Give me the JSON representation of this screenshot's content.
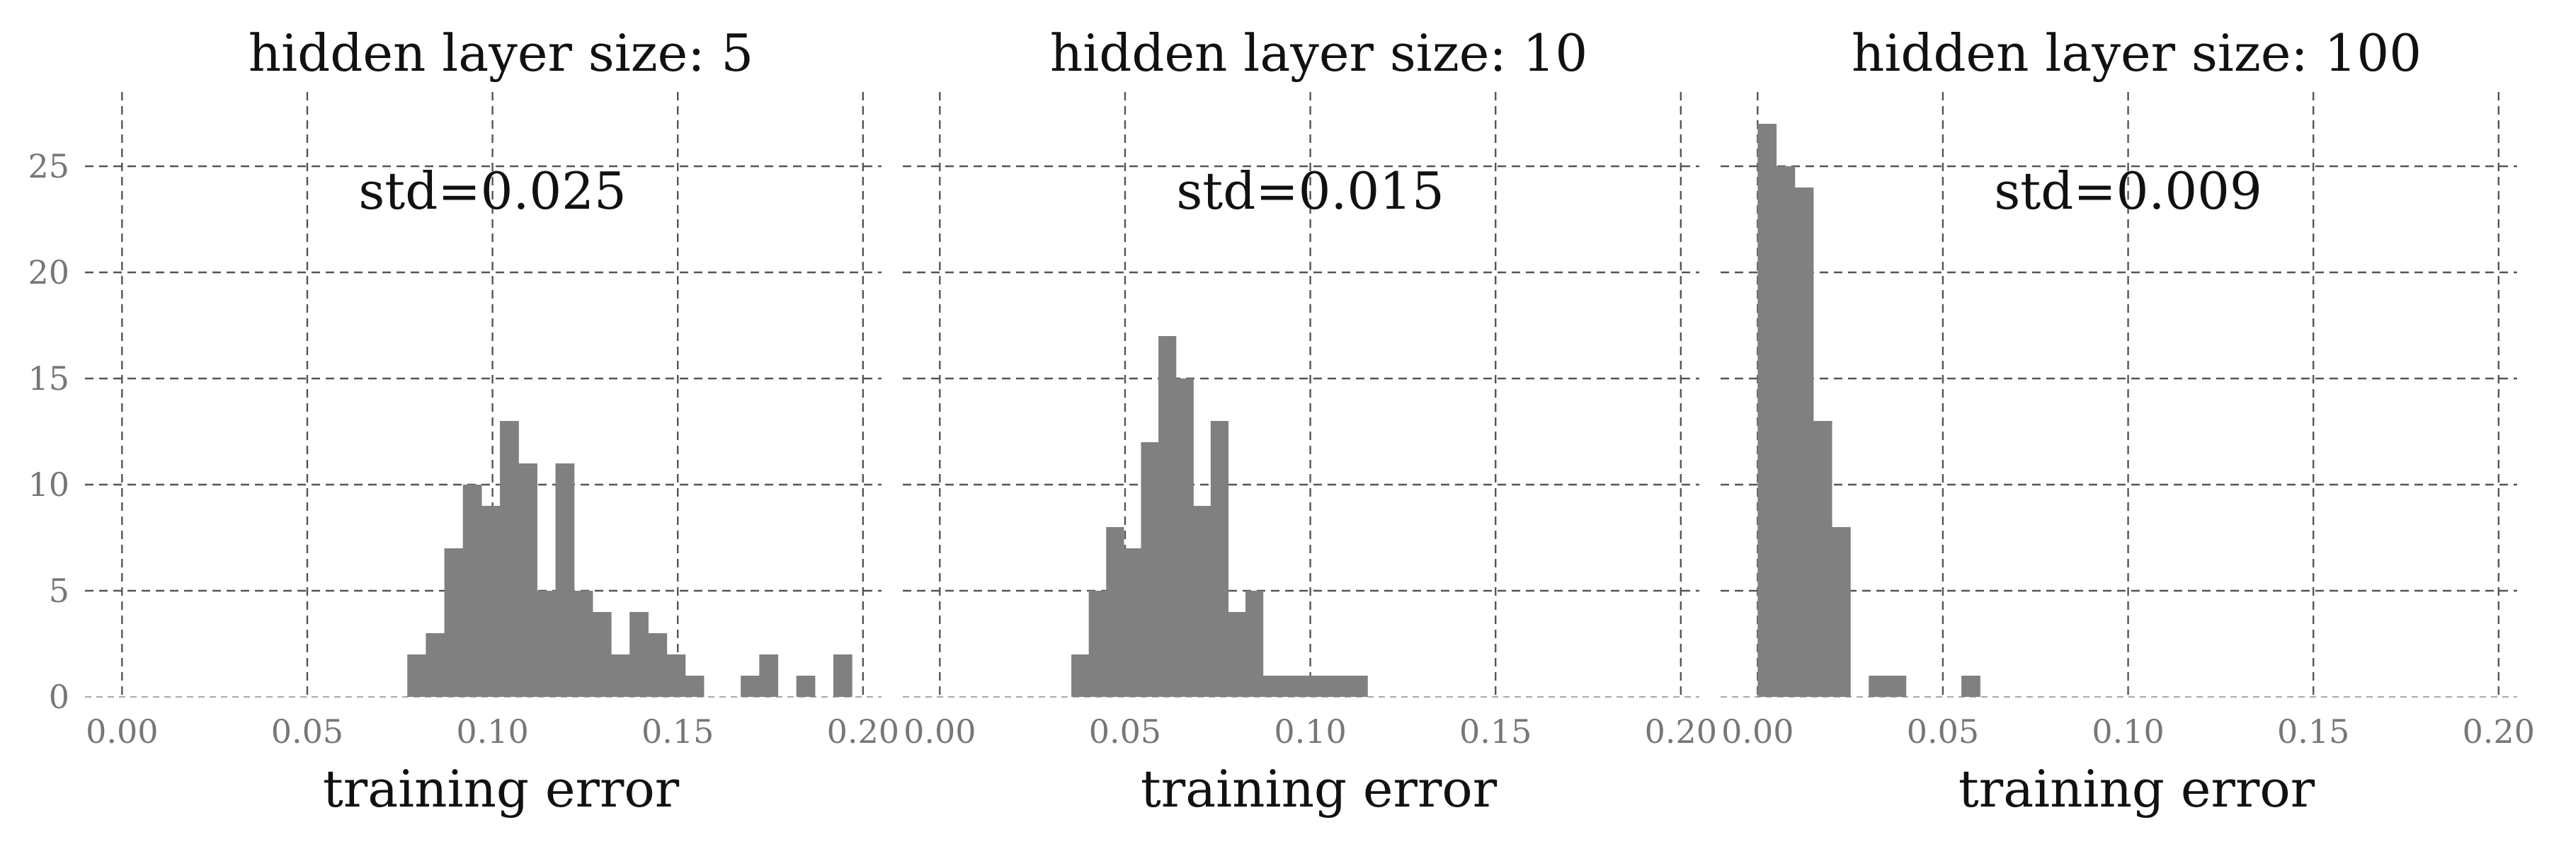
{
  "chart_data": [
    {
      "type": "bar",
      "title": "hidden layer size: 5",
      "xlabel": "training error",
      "ylabel": "",
      "annotation": "std=0.025",
      "xlim": [
        -0.01,
        0.205
      ],
      "ylim": [
        0,
        28.5
      ],
      "xticks": [
        0.0,
        0.05,
        0.1,
        0.15,
        0.2
      ],
      "xtick_labels": [
        "0.00",
        "0.05",
        "0.10",
        "0.15",
        "0.20"
      ],
      "yticks": [
        0,
        5,
        10,
        15,
        20,
        25
      ],
      "ytick_labels": [
        "0",
        "5",
        "10",
        "15",
        "20",
        "25"
      ],
      "grid": true,
      "bar_color": "#808080",
      "bin_width": 0.005,
      "bin_starts": [
        0.077,
        0.082,
        0.087,
        0.092,
        0.097,
        0.102,
        0.107,
        0.112,
        0.117,
        0.122,
        0.127,
        0.132,
        0.137,
        0.142,
        0.147,
        0.152,
        0.157,
        0.162,
        0.167,
        0.172,
        0.177,
        0.182,
        0.187,
        0.192,
        0.197
      ],
      "values": [
        2,
        3,
        7,
        10,
        9,
        13,
        11,
        5,
        11,
        5,
        4,
        2,
        4,
        3,
        2,
        1,
        0,
        0,
        1,
        2,
        0,
        1,
        0,
        2,
        0
      ]
    },
    {
      "type": "bar",
      "title": "hidden layer size: 10",
      "xlabel": "training error",
      "ylabel": "",
      "annotation": "std=0.015",
      "xlim": [
        -0.01,
        0.205
      ],
      "ylim": [
        0,
        28.5
      ],
      "xticks": [
        0.0,
        0.05,
        0.1,
        0.15,
        0.2
      ],
      "xtick_labels": [
        "0.00",
        "0.05",
        "0.10",
        "0.15",
        "0.20"
      ],
      "yticks": [
        0,
        5,
        10,
        15,
        20,
        25
      ],
      "ytick_labels": [
        "",
        "",
        "",
        "",
        "",
        ""
      ],
      "grid": true,
      "bar_color": "#808080",
      "bin_width": 0.0047,
      "bin_starts": [
        0.0355,
        0.0402,
        0.0449,
        0.0496,
        0.0543,
        0.059,
        0.0637,
        0.0684,
        0.0731,
        0.0778,
        0.0825,
        0.0872,
        0.0919,
        0.0966,
        0.1013,
        0.106,
        0.1107,
        0.1154
      ],
      "values": [
        2,
        5,
        8,
        7,
        12,
        17,
        15,
        9,
        13,
        4,
        5,
        1,
        1,
        1,
        1,
        1,
        1,
        0
      ]
    },
    {
      "type": "bar",
      "title": "hidden layer size: 100",
      "xlabel": "training error",
      "ylabel": "",
      "annotation": "std=0.009",
      "xlim": [
        -0.01,
        0.205
      ],
      "ylim": [
        0,
        28.5
      ],
      "xticks": [
        0.0,
        0.05,
        0.1,
        0.15,
        0.2
      ],
      "xtick_labels": [
        "0.00",
        "0.05",
        "0.10",
        "0.15",
        "0.20"
      ],
      "yticks": [
        0,
        5,
        10,
        15,
        20,
        25
      ],
      "ytick_labels": [
        "",
        "",
        "",
        "",
        "",
        ""
      ],
      "grid": true,
      "bar_color": "#808080",
      "bin_width": 0.005,
      "bin_starts": [
        0.0,
        0.005,
        0.01,
        0.015,
        0.02,
        0.025,
        0.03,
        0.035,
        0.04,
        0.045,
        0.05,
        0.055
      ],
      "values": [
        27,
        25,
        24,
        13,
        8,
        0,
        1,
        1,
        0,
        0,
        0,
        1
      ]
    }
  ]
}
